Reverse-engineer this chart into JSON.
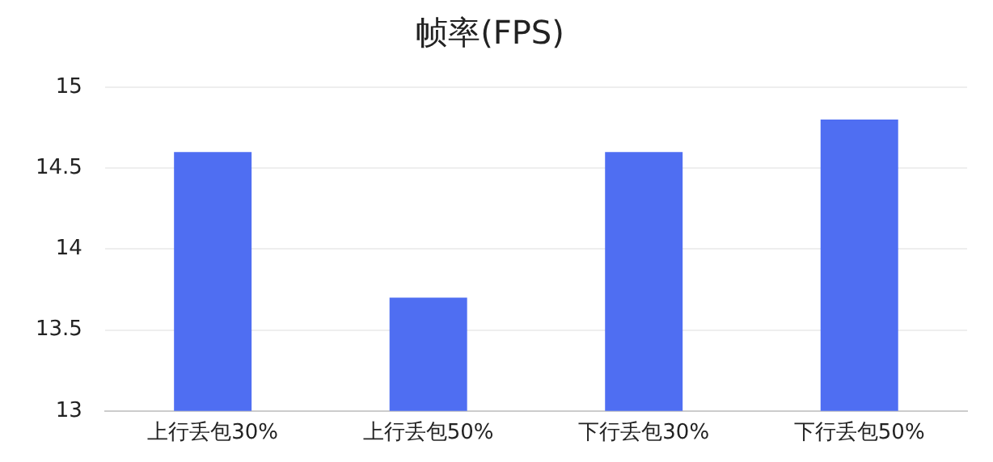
{
  "chart_data": {
    "type": "bar",
    "title": "帧率(FPS)",
    "categories": [
      "上行丢包30%",
      "上行丢包50%",
      "下行丢包30%",
      "下行丢包50%"
    ],
    "values": [
      14.6,
      13.7,
      14.6,
      14.8
    ],
    "color": "#4f6ef2",
    "ylim": [
      13,
      15
    ],
    "yticks": [
      13,
      13.5,
      14,
      14.5,
      15
    ],
    "grid": "y",
    "legend": false
  }
}
